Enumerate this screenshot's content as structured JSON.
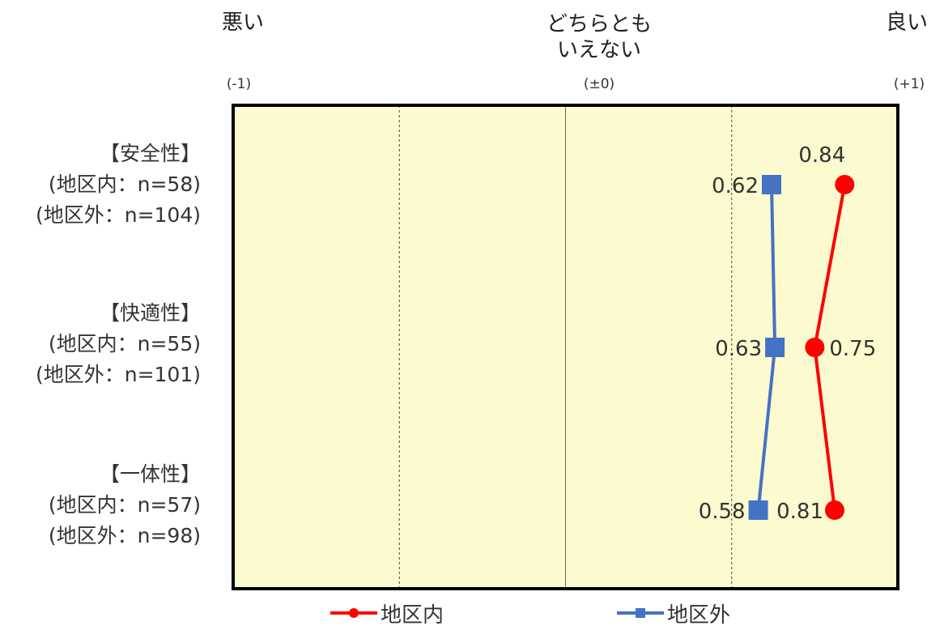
{
  "chart_data": {
    "type": "line",
    "orientation": "horizontal",
    "scale_labels": [
      {
        "label": "悪い",
        "value_label": "(-1)"
      },
      {
        "label": "どちらとも\nいえない",
        "value_label": "(±0)"
      },
      {
        "label": "良い",
        "value_label": "(+1)"
      }
    ],
    "xlim": [
      -1,
      1
    ],
    "categories": [
      {
        "name": "【安全性】",
        "n1": "(地区内：n=58)",
        "n2": "(地区外：n=104)"
      },
      {
        "name": "【快適性】",
        "n1": "(地区内：n=55)",
        "n2": "(地区外：n=101)"
      },
      {
        "name": "【一体性】",
        "n1": "(地区内：n=57)",
        "n2": "(地区外：n=98)"
      }
    ],
    "series": [
      {
        "name": "地区内",
        "values": [
          0.84,
          0.75,
          0.81
        ],
        "labels": [
          "0.84",
          "0.75",
          "0.81"
        ],
        "color": "#ff0000",
        "marker": "circle"
      },
      {
        "name": "地区外",
        "values": [
          0.62,
          0.63,
          0.58
        ],
        "labels": [
          "0.62",
          "0.63",
          "0.58"
        ],
        "color": "#4472c4",
        "marker": "square"
      }
    ],
    "plot_background": "#fbfbcf"
  }
}
